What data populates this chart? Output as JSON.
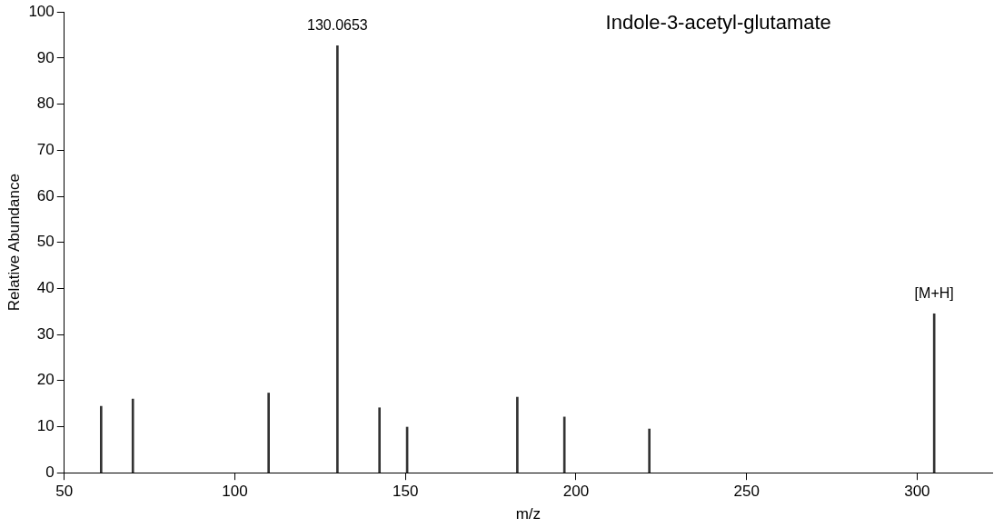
{
  "chart_data": {
    "type": "bar",
    "title": "Indole-3-acetyl-glutamate",
    "xlabel": "m/z",
    "ylabel": "Relative Abundance",
    "x": [
      60.8,
      70.1,
      109.9,
      130.0653,
      142.4,
      150.5,
      182.8,
      196.6,
      221.5,
      305.0
    ],
    "values": [
      14.4,
      16.0,
      17.3,
      92.7,
      14.1,
      9.9,
      16.4,
      12.1,
      9.5,
      34.5
    ],
    "color": "#333333",
    "xlim": [
      50,
      322
    ],
    "xticks": [
      50,
      100,
      150,
      200,
      250,
      300
    ],
    "ylim": [
      0,
      100
    ],
    "yticks": [
      0,
      10,
      20,
      30,
      40,
      50,
      60,
      70,
      80,
      90,
      100
    ],
    "grid": false,
    "legend": false,
    "annotations": [
      {
        "text": "130.0653",
        "x": 130.0653,
        "y": 92.7
      },
      {
        "text": "[M+H]",
        "x": 305.0,
        "y": 34.5
      }
    ]
  }
}
